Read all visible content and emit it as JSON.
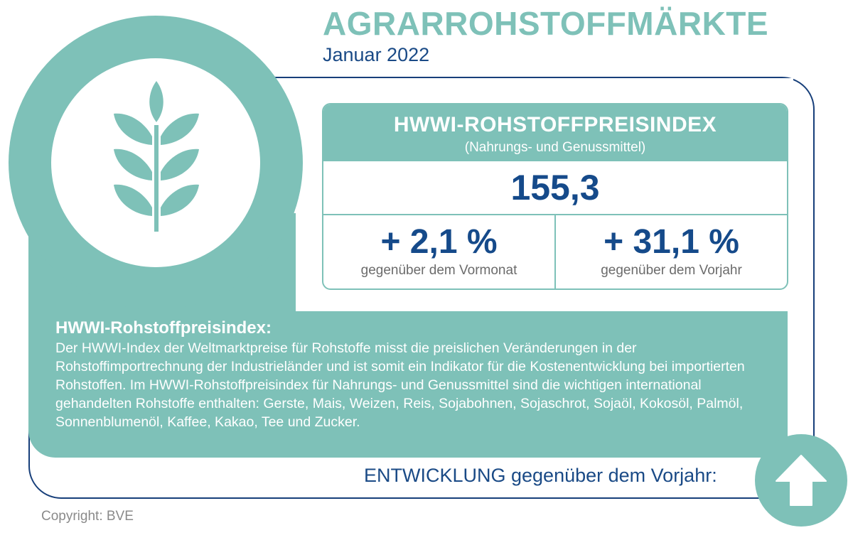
{
  "header": {
    "title": "AGRARROHSTOFFMÄRKTE",
    "subtitle": "Januar 2022"
  },
  "index_box": {
    "title": "HWWI-ROHSTOFFPREISINDEX",
    "subtitle": "(Nahrungs- und Genussmittel)",
    "value": "155,3",
    "monthly_change": "+ 2,1 %",
    "monthly_label": "gegenüber dem Vormonat",
    "yearly_change": "+ 31,1 %",
    "yearly_label": "gegenüber dem Vorjahr"
  },
  "description": {
    "title": "HWWI-Rohstoffpreisindex:",
    "text": "Der HWWI-Index der Weltmarktpreise für Rohstoffe misst die preislichen Veränderungen in der Rohstoffimportrechnung der Industrieländer und ist somit ein Indikator für die Kostenentwicklung bei importierten Rohstoffen. Im HWWI-Rohstoffpreisindex für Nahrungs- und Genussmittel sind die wichtigen international gehandelten Rohstoffe enthalten: Gerste, Mais, Weizen, Reis, Sojabohnen, Sojaschrot, Sojaöl, Kokosöl, Palmöl, Sonnenblumenöl, Kaffee, Kakao, Tee und Zucker."
  },
  "trend": {
    "label": "ENTWICKLUNG gegenüber dem Vorjahr:",
    "icon": "arrow-up-icon"
  },
  "footer": {
    "copyright": "Copyright: BVE"
  },
  "icons": {
    "main": "wheat-icon"
  },
  "colors": {
    "teal": "#7ec1b8",
    "navy": "#154a8a",
    "gray": "#6b6b6b"
  }
}
